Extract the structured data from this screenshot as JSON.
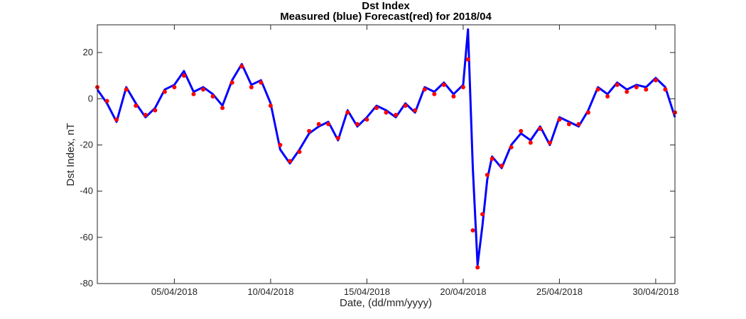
{
  "chart_data": {
    "type": "line",
    "title": "Dst Index",
    "subtitle": "Measured (blue) Forecast(red) for 2018/04",
    "xlabel": "Date, (dd/mm/yyyy)",
    "ylabel": "Dst Index, nT",
    "x_range": [
      "2018-04-01",
      "2018-05-01"
    ],
    "ylim": [
      -80,
      32
    ],
    "x_ticks": [
      "05/04/2018",
      "10/04/2018",
      "15/04/2018",
      "20/04/2018",
      "25/04/2018",
      "30/04/2018"
    ],
    "y_ticks": [
      "20",
      "0",
      "-20",
      "-40",
      "-60",
      "-80"
    ],
    "grid": false,
    "colors": {
      "measured": "#0000ff",
      "forecast": "#ff0000",
      "axis": "#262626"
    },
    "series": [
      {
        "name": "Measured (blue)",
        "style": "line",
        "x": [
          "2018-04-01",
          "2018-04-01T12",
          "2018-04-02",
          "2018-04-02T12",
          "2018-04-03",
          "2018-04-03T12",
          "2018-04-04",
          "2018-04-04T12",
          "2018-04-05",
          "2018-04-05T12",
          "2018-04-06",
          "2018-04-06T12",
          "2018-04-07",
          "2018-04-07T12",
          "2018-04-08",
          "2018-04-08T12",
          "2018-04-09",
          "2018-04-09T12",
          "2018-04-10",
          "2018-04-10T12",
          "2018-04-11",
          "2018-04-11T12",
          "2018-04-12",
          "2018-04-12T12",
          "2018-04-13",
          "2018-04-13T12",
          "2018-04-14",
          "2018-04-14T12",
          "2018-04-15",
          "2018-04-15T12",
          "2018-04-16",
          "2018-04-16T12",
          "2018-04-17",
          "2018-04-17T12",
          "2018-04-18",
          "2018-04-18T12",
          "2018-04-19",
          "2018-04-19T12",
          "2018-04-20",
          "2018-04-20T06",
          "2018-04-20T12",
          "2018-04-20T18",
          "2018-04-21",
          "2018-04-21T06",
          "2018-04-21T12",
          "2018-04-22",
          "2018-04-22T12",
          "2018-04-23",
          "2018-04-23T12",
          "2018-04-24",
          "2018-04-24T12",
          "2018-04-25",
          "2018-04-25T12",
          "2018-04-26",
          "2018-04-26T12",
          "2018-04-27",
          "2018-04-27T12",
          "2018-04-28",
          "2018-04-28T12",
          "2018-04-29",
          "2018-04-29T12",
          "2018-04-30",
          "2018-04-30T12",
          "2018-05-01"
        ],
        "y": [
          4,
          -2,
          -10,
          5,
          -2,
          -8,
          -4,
          4,
          6,
          12,
          3,
          5,
          2,
          -3,
          8,
          15,
          6,
          8,
          -2,
          -22,
          -28,
          -22,
          -15,
          -12,
          -10,
          -18,
          -5,
          -12,
          -8,
          -3,
          -5,
          -8,
          -2,
          -6,
          5,
          3,
          7,
          2,
          6,
          30,
          -30,
          -72,
          -55,
          -35,
          -25,
          -30,
          -20,
          -15,
          -18,
          -12,
          -20,
          -8,
          -10,
          -12,
          -5,
          5,
          2,
          7,
          4,
          6,
          5,
          9,
          5,
          -8
        ],
        "values_note": ""
      },
      {
        "name": "Forecast(red)",
        "style": "markers",
        "x": [
          "2018-04-01",
          "2018-04-01T12",
          "2018-04-02",
          "2018-04-02T12",
          "2018-04-03",
          "2018-04-03T12",
          "2018-04-04",
          "2018-04-04T12",
          "2018-04-05",
          "2018-04-05T12",
          "2018-04-06",
          "2018-04-06T12",
          "2018-04-07",
          "2018-04-07T12",
          "2018-04-08",
          "2018-04-08T12",
          "2018-04-09",
          "2018-04-09T12",
          "2018-04-10",
          "2018-04-10T12",
          "2018-04-11",
          "2018-04-11T12",
          "2018-04-12",
          "2018-04-12T12",
          "2018-04-13",
          "2018-04-13T12",
          "2018-04-14",
          "2018-04-14T12",
          "2018-04-15",
          "2018-04-15T12",
          "2018-04-16",
          "2018-04-16T12",
          "2018-04-17",
          "2018-04-17T12",
          "2018-04-18",
          "2018-04-18T12",
          "2018-04-19",
          "2018-04-19T12",
          "2018-04-20",
          "2018-04-20T06",
          "2018-04-20T12",
          "2018-04-20T18",
          "2018-04-21",
          "2018-04-21T06",
          "2018-04-21T12",
          "2018-04-22",
          "2018-04-22T12",
          "2018-04-23",
          "2018-04-23T12",
          "2018-04-24",
          "2018-04-24T12",
          "2018-04-25",
          "2018-04-25T12",
          "2018-04-26",
          "2018-04-26T12",
          "2018-04-27",
          "2018-04-27T12",
          "2018-04-28",
          "2018-04-28T12",
          "2018-04-29",
          "2018-04-29T12",
          "2018-04-30",
          "2018-04-30T12",
          "2018-05-01"
        ],
        "y": [
          5,
          -1,
          -9,
          4,
          -3,
          -7,
          -5,
          3,
          5,
          10,
          2,
          4,
          1,
          -4,
          7,
          14,
          5,
          7,
          -3,
          -20,
          -27,
          -23,
          -14,
          -11,
          -11,
          -17,
          -6,
          -11,
          -9,
          -4,
          -6,
          -7,
          -3,
          -5,
          4,
          2,
          6,
          1,
          5,
          17,
          -57,
          -73,
          -50,
          -33,
          -26,
          -29,
          -21,
          -14,
          -19,
          -13,
          -19,
          -9,
          -11,
          -11,
          -6,
          4,
          1,
          6,
          3,
          5,
          4,
          8,
          4,
          -6
        ]
      }
    ]
  }
}
